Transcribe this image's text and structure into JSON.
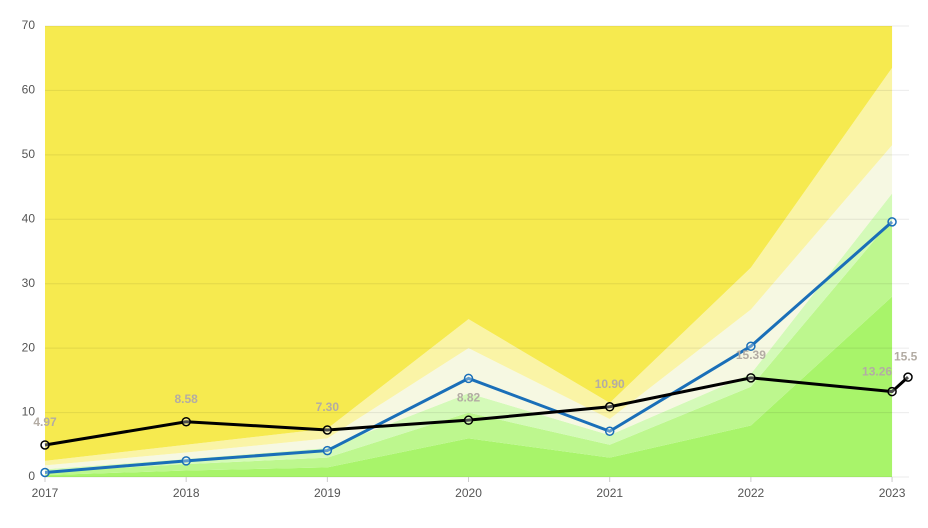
{
  "chart_data": {
    "type": "line",
    "x": [
      2017,
      2018,
      2019,
      2020,
      2021,
      2022,
      2023
    ],
    "xlim": [
      2017,
      2023.12
    ],
    "xticks": [
      2017,
      2018,
      2019,
      2020,
      2021,
      2022,
      2023
    ],
    "ylim": [
      0,
      70
    ],
    "yticks": [
      0,
      10,
      20,
      30,
      40,
      50,
      60,
      70
    ],
    "grid": true,
    "areas": [
      {
        "color": "#a8f46a",
        "values": [
          0.3,
          1,
          1.5,
          6,
          3,
          8,
          28
        ]
      },
      {
        "color": "#bdf78e",
        "values": [
          0.5,
          1,
          1.5,
          4,
          2,
          6,
          12
        ]
      },
      {
        "color": "#d4fab8",
        "values": [
          0.4,
          0.8,
          1.5,
          3,
          1.5,
          2,
          4
        ]
      },
      {
        "color": "#f6f8e2",
        "values": [
          0.6,
          1,
          1.5,
          7,
          2.5,
          10,
          7.5
        ]
      },
      {
        "color": "#faf4a6",
        "values": [
          0.7,
          1.2,
          1.5,
          4.5,
          2.5,
          6.5,
          12
        ]
      },
      {
        "color": "#f6ea4f",
        "values": [
          67.5,
          65,
          62.5,
          45.5,
          58.5,
          37.5,
          6.5
        ]
      }
    ],
    "series": [
      {
        "color": "#1a6fb8",
        "values": [
          0.7,
          2.5,
          4.1,
          15.3,
          7.1,
          20.3,
          39.6
        ]
      },
      {
        "color": "#000000",
        "x": [
          2017,
          2018,
          2019,
          2020,
          2021,
          2022,
          2023,
          2023.113
        ],
        "values": [
          4.97,
          8.58,
          7.3,
          8.82,
          10.9,
          15.39,
          13.26,
          15.5
        ],
        "value_labels": [
          "4.97",
          "8.58",
          "7.30",
          "8.82",
          "10.90",
          "15.39",
          "13.26",
          "15.5"
        ]
      }
    ]
  }
}
